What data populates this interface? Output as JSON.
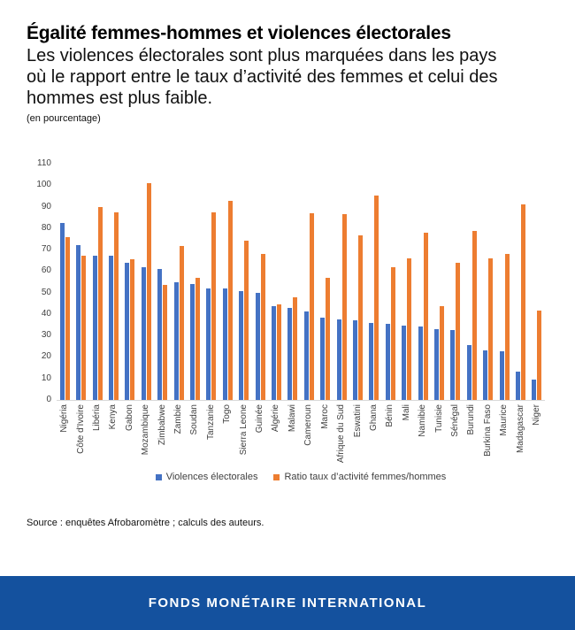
{
  "header": {
    "title": "Égalité femmes-hommes et violences électorales",
    "subtitle_lines": [
      "Les violences électorales sont plus marquées dans les pays",
      "où le rapport entre le taux d’activité des femmes et celui des",
      "hommes est plus faible."
    ],
    "unit_note": "(en pourcentage)"
  },
  "chart_data": {
    "type": "bar",
    "categories": [
      "Nigéria",
      "Côte d'Ivoire",
      "Libéria",
      "Kenya",
      "Gabon",
      "Mozambique",
      "Zimbabwe",
      "Zambie",
      "Soudan",
      "Tanzanie",
      "Togo",
      "Sierra Leone",
      "Guinée",
      "Algérie",
      "Malawi",
      "Cameroun",
      "Maroc",
      "Afrique du Sud",
      "Eswatini",
      "Ghana",
      "Bénin",
      "Mali",
      "Namibie",
      "Tunisie",
      "Sénégal",
      "Burundi",
      "Burkina Faso",
      "Maurice",
      "Madagascar",
      "Niger"
    ],
    "series": [
      {
        "name": "Violences électorales",
        "color": "#4472c4",
        "values": [
          82.5,
          72,
          67,
          67,
          64,
          62,
          61,
          55,
          54,
          52,
          52,
          50.5,
          50,
          43.5,
          43,
          41,
          38.5,
          37.5,
          37,
          36,
          35.5,
          34.5,
          34,
          33,
          32.5,
          25.5,
          23,
          22.5,
          13,
          9.5
        ]
      },
      {
        "name": "Ratio taux d’activité femmes/hommes",
        "color": "#ed7d31",
        "values": [
          76,
          67,
          90,
          87.5,
          65.5,
          101,
          53.5,
          71.5,
          57,
          87.5,
          92.5,
          74,
          68,
          44.5,
          48,
          87,
          57,
          86.5,
          76.5,
          95,
          62,
          66,
          78,
          43.5,
          64,
          78.5,
          66,
          68,
          91,
          41.5
        ]
      }
    ],
    "title": "Égalité femmes-hommes et violences électorales",
    "xlabel": "",
    "ylabel": "",
    "ylim": [
      0,
      110
    ],
    "yticks": [
      0,
      10,
      20,
      30,
      40,
      50,
      60,
      70,
      80,
      90,
      100,
      110
    ],
    "grid": false,
    "legend_position": "bottom"
  },
  "source": "Source : enquêtes Afrobaromètre ; calculs des auteurs.",
  "footer": {
    "text": "FONDS MONÉTAIRE INTERNATIONAL",
    "background": "#14519e"
  }
}
